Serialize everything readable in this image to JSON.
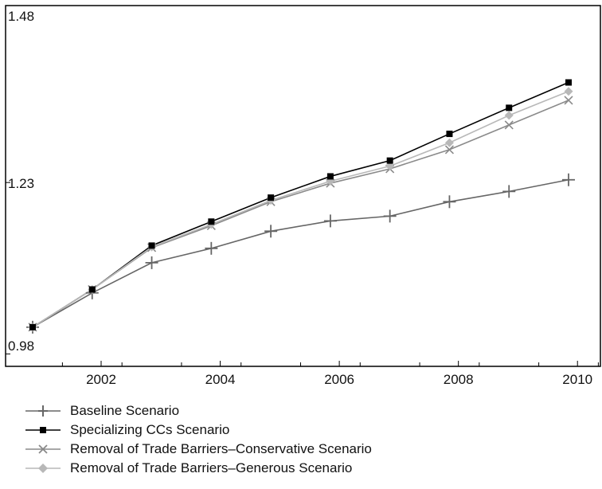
{
  "chart_data": {
    "type": "line",
    "title": "",
    "xlabel": "",
    "ylabel": "",
    "x": [
      2001,
      2002,
      2003,
      2004,
      2005,
      2006,
      2007,
      2008,
      2009,
      2010
    ],
    "x_ticks": [
      "2002",
      "2004",
      "2006",
      "2008",
      "2010"
    ],
    "x_tick_values": [
      2002,
      2004,
      2006,
      2008,
      2010
    ],
    "y_ticks": [
      "1.48",
      "1.23",
      "0.98"
    ],
    "y_tick_values": [
      1.48,
      1.23,
      0.98
    ],
    "ylim": [
      0.97,
      1.48
    ],
    "grid": false,
    "legend_position": "bottom",
    "series": [
      {
        "name": "Baseline Scenario",
        "marker": "plus",
        "color": "#666666",
        "values": [
          1.019,
          1.069,
          1.113,
          1.134,
          1.159,
          1.174,
          1.181,
          1.202,
          1.217,
          1.234
        ]
      },
      {
        "name": "Specializing CCs Scenario",
        "marker": "square",
        "color": "#000000",
        "values": [
          1.019,
          1.074,
          1.138,
          1.173,
          1.208,
          1.239,
          1.262,
          1.301,
          1.339,
          1.376
        ]
      },
      {
        "name": "Removal of Trade Barriers–Conservative Scenario",
        "marker": "x",
        "color": "#8a8a8a",
        "values": [
          1.019,
          1.074,
          1.135,
          1.167,
          1.202,
          1.229,
          1.25,
          1.278,
          1.314,
          1.35
        ]
      },
      {
        "name": "Removal of Trade Barriers–Generous Scenario",
        "marker": "diamond",
        "color": "#b8b8b8",
        "values": [
          1.019,
          1.074,
          1.136,
          1.169,
          1.204,
          1.232,
          1.254,
          1.288,
          1.328,
          1.363
        ]
      }
    ]
  }
}
